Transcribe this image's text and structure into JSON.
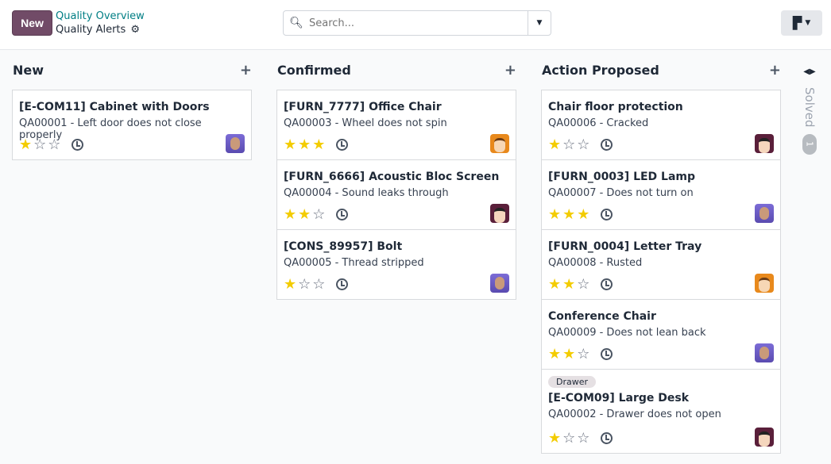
{
  "header": {
    "new_label": "New",
    "breadcrumb_parent": "Quality Overview",
    "breadcrumb_current": "Quality Alerts",
    "search_placeholder": "Search..."
  },
  "colors": {
    "brand": "#714b67",
    "link": "#017e84",
    "star": "#f3cc00"
  },
  "columns": [
    {
      "title": "New",
      "cards": [
        {
          "title": "[E-COM11] Cabinet with Doors",
          "sub": "QA00001 - Left door does not close properly",
          "stars": 1,
          "avatar": "a"
        }
      ]
    },
    {
      "title": "Confirmed",
      "cards": [
        {
          "title": "[FURN_7777] Office Chair",
          "sub": "QA00003 - Wheel does not spin",
          "stars": 3,
          "avatar": "b"
        },
        {
          "title": "[FURN_6666] Acoustic Bloc Screen",
          "sub": "QA00004 - Sound leaks through",
          "stars": 2,
          "avatar": "c"
        },
        {
          "title": "[CONS_89957] Bolt",
          "sub": "QA00005 - Thread stripped",
          "stars": 1,
          "avatar": "a"
        }
      ]
    },
    {
      "title": "Action Proposed",
      "cards": [
        {
          "title": "Chair floor protection",
          "sub": "QA00006 - Cracked",
          "stars": 1,
          "avatar": "c"
        },
        {
          "title": "[FURN_0003] LED Lamp",
          "sub": "QA00007 - Does not turn on",
          "stars": 3,
          "avatar": "a"
        },
        {
          "title": "[FURN_0004] Letter Tray",
          "sub": "QA00008 - Rusted",
          "stars": 2,
          "avatar": "b"
        },
        {
          "title": "Conference Chair",
          "sub": "QA00009 - Does not lean back",
          "stars": 2,
          "avatar": "a"
        },
        {
          "title": "[E-COM09] Large Desk",
          "sub": "QA00002 - Drawer does not open",
          "stars": 1,
          "avatar": "c",
          "tag": "Drawer"
        }
      ]
    }
  ],
  "folded": {
    "title": "Solved",
    "count": "1"
  }
}
